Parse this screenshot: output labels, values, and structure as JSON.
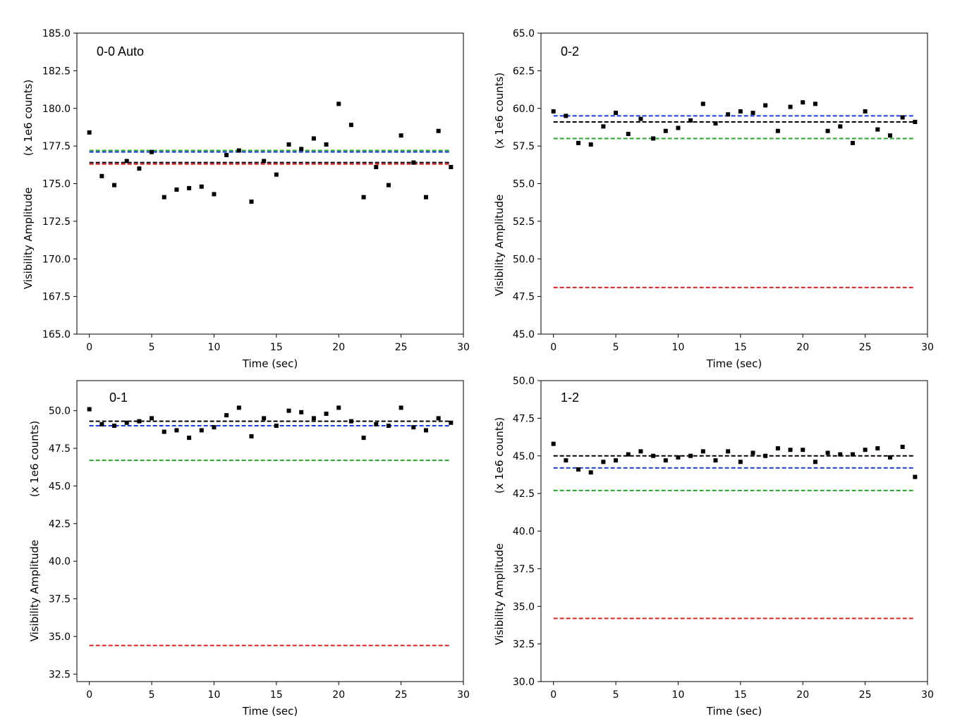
{
  "chart_data": [
    {
      "type": "scatter",
      "title": "0-0 Auto",
      "xlabel": "Time (sec)",
      "ylabel_line1": "Visibility Amplitude",
      "ylabel_line2": "(x 1e6 counts)",
      "xlim": [
        -1,
        30
      ],
      "ylim": [
        165.0,
        185.0
      ],
      "xticks": [
        0,
        5,
        10,
        15,
        20,
        25,
        30
      ],
      "yticks": [
        "165.0",
        "167.5",
        "170.0",
        "172.5",
        "175.0",
        "177.5",
        "180.0",
        "182.5",
        "185.0"
      ],
      "x": [
        0,
        1,
        2,
        3,
        4,
        5,
        6,
        7,
        8,
        9,
        10,
        11,
        12,
        13,
        14,
        15,
        16,
        17,
        18,
        19,
        20,
        21,
        22,
        23,
        24,
        25,
        26,
        27,
        28,
        29
      ],
      "values": [
        178.4,
        175.5,
        174.9,
        176.5,
        176.0,
        177.1,
        174.1,
        174.6,
        174.7,
        174.8,
        174.3,
        176.9,
        177.2,
        173.8,
        176.5,
        175.6,
        177.6,
        177.3,
        178.0,
        177.6,
        180.3,
        178.9,
        174.1,
        176.1,
        174.9,
        178.2,
        176.4,
        174.1,
        178.5,
        176.1
      ],
      "reference_lines": [
        {
          "color": "#2ca02c",
          "value": 177.2
        },
        {
          "color": "#1f3fdb",
          "value": 177.1
        },
        {
          "color": "#000000",
          "value": 176.4
        },
        {
          "color": "#d62728",
          "value": 176.3
        }
      ]
    },
    {
      "type": "scatter",
      "title": "0-2",
      "xlabel": "Time (sec)",
      "ylabel_line1": "Visibility Amplitude",
      "ylabel_line2": "(x 1e6 counts)",
      "xlim": [
        -1,
        30
      ],
      "ylim": [
        45.0,
        65.0
      ],
      "xticks": [
        0,
        5,
        10,
        15,
        20,
        25,
        30
      ],
      "yticks": [
        "45.0",
        "47.5",
        "50.0",
        "52.5",
        "55.0",
        "57.5",
        "60.0",
        "62.5",
        "65.0"
      ],
      "x": [
        0,
        1,
        2,
        3,
        4,
        5,
        6,
        7,
        8,
        9,
        10,
        11,
        12,
        13,
        14,
        15,
        16,
        17,
        18,
        19,
        20,
        21,
        22,
        23,
        24,
        25,
        26,
        27,
        28,
        29
      ],
      "values": [
        59.8,
        59.5,
        57.7,
        57.6,
        58.8,
        59.7,
        58.3,
        59.3,
        58.0,
        58.5,
        58.7,
        59.2,
        60.3,
        59.0,
        59.6,
        59.8,
        59.7,
        60.2,
        58.5,
        60.1,
        60.4,
        60.3,
        58.5,
        58.8,
        57.7,
        59.8,
        58.6,
        58.2,
        59.4,
        59.1
      ],
      "reference_lines": [
        {
          "color": "#1f3fdb",
          "value": 59.5
        },
        {
          "color": "#000000",
          "value": 59.1
        },
        {
          "color": "#2ca02c",
          "value": 58.0
        },
        {
          "color": "#d62728",
          "value": 48.1
        }
      ]
    },
    {
      "type": "scatter",
      "title": "0-1",
      "xlabel": "Time (sec)",
      "ylabel_line1": "Visibility Amplitude",
      "ylabel_line2": "(x 1e6 counts)",
      "xlim": [
        -1,
        30
      ],
      "ylim": [
        32.0,
        52.0
      ],
      "xticks": [
        0,
        5,
        10,
        15,
        20,
        25,
        30
      ],
      "yticks": [
        "32.5",
        "35.0",
        "37.5",
        "40.0",
        "42.5",
        "45.0",
        "47.5",
        "50.0"
      ],
      "x": [
        0,
        1,
        2,
        3,
        4,
        5,
        6,
        7,
        8,
        9,
        10,
        11,
        12,
        13,
        14,
        15,
        16,
        17,
        18,
        19,
        20,
        21,
        22,
        23,
        24,
        25,
        26,
        27,
        28,
        29
      ],
      "values": [
        50.1,
        49.1,
        49.0,
        49.2,
        49.3,
        49.5,
        48.6,
        48.7,
        48.2,
        48.7,
        48.9,
        49.7,
        50.2,
        48.3,
        49.5,
        49.0,
        50.0,
        49.9,
        49.5,
        49.8,
        50.2,
        49.3,
        48.2,
        49.1,
        49.0,
        50.2,
        48.9,
        48.7,
        49.5,
        49.2
      ],
      "reference_lines": [
        {
          "color": "#000000",
          "value": 49.3
        },
        {
          "color": "#1f3fdb",
          "value": 49.0
        },
        {
          "color": "#2ca02c",
          "value": 46.7
        },
        {
          "color": "#d62728",
          "value": 34.4
        }
      ]
    },
    {
      "type": "scatter",
      "title": "1-2",
      "xlabel": "Time (sec)",
      "ylabel_line1": "Visibility Amplitude",
      "ylabel_line2": "(x 1e6 counts)",
      "xlim": [
        -1,
        30
      ],
      "ylim": [
        30.0,
        50.0
      ],
      "xticks": [
        0,
        5,
        10,
        15,
        20,
        25,
        30
      ],
      "yticks": [
        "30.0",
        "32.5",
        "35.0",
        "37.5",
        "40.0",
        "42.5",
        "45.0",
        "47.5",
        "50.0"
      ],
      "x": [
        0,
        1,
        2,
        3,
        4,
        5,
        6,
        7,
        8,
        9,
        10,
        11,
        12,
        13,
        14,
        15,
        16,
        17,
        18,
        19,
        20,
        21,
        22,
        23,
        24,
        25,
        26,
        27,
        28,
        29
      ],
      "values": [
        45.8,
        44.7,
        44.1,
        43.9,
        44.6,
        44.7,
        45.1,
        45.3,
        45.0,
        44.7,
        44.9,
        45.0,
        45.3,
        44.7,
        45.3,
        44.6,
        45.2,
        45.0,
        45.5,
        45.4,
        45.4,
        44.6,
        45.2,
        45.1,
        45.1,
        45.4,
        45.5,
        44.9,
        45.6,
        43.6
      ],
      "reference_lines": [
        {
          "color": "#000000",
          "value": 45.0
        },
        {
          "color": "#1f3fdb",
          "value": 44.2
        },
        {
          "color": "#2ca02c",
          "value": 42.7
        },
        {
          "color": "#d62728",
          "value": 34.2
        }
      ]
    }
  ]
}
